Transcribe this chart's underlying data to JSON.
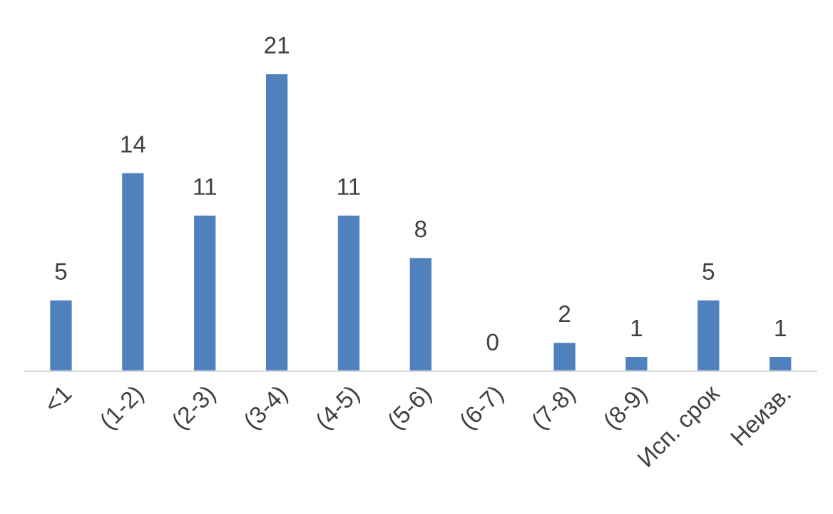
{
  "chart_data": {
    "type": "bar",
    "categories": [
      "<1",
      "(1-2)",
      "(2-3)",
      "(3-4)",
      "(4-5)",
      "(5-6)",
      "(6-7)",
      "(7-8)",
      "(8-9)",
      "Исп. срок",
      "Неизв."
    ],
    "values": [
      5,
      14,
      11,
      21,
      11,
      8,
      0,
      2,
      1,
      5,
      1
    ],
    "color": "#4f81bd",
    "data_labels": true,
    "grid": false,
    "legend": false
  }
}
